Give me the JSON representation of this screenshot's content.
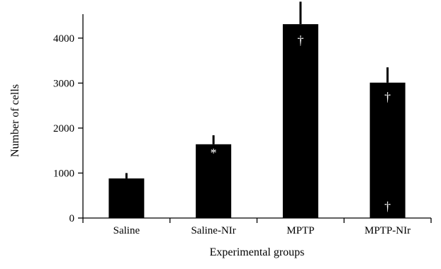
{
  "chart_data": {
    "type": "bar",
    "title": "",
    "xlabel": "Experimental groups",
    "ylabel": "Number of cells",
    "ylim": [
      0,
      4800
    ],
    "yticks": [
      0,
      1000,
      2000,
      3000,
      4000
    ],
    "grid": false,
    "categories": [
      "Saline",
      "Saline-NIr",
      "MPTP",
      "MPTP-NIr"
    ],
    "values": [
      880,
      1640,
      4310,
      3010
    ],
    "errors": [
      120,
      200,
      500,
      340
    ],
    "bar_color": "#000000",
    "annotations": [
      {
        "category": "Saline-NIr",
        "symbol": "*",
        "y": 1450
      },
      {
        "category": "MPTP",
        "symbol": "†",
        "y": 3950
      },
      {
        "category": "MPTP-NIr",
        "symbol": "†",
        "y": 2690
      },
      {
        "category": "MPTP-NIr",
        "symbol": "†",
        "y": 260
      }
    ]
  }
}
